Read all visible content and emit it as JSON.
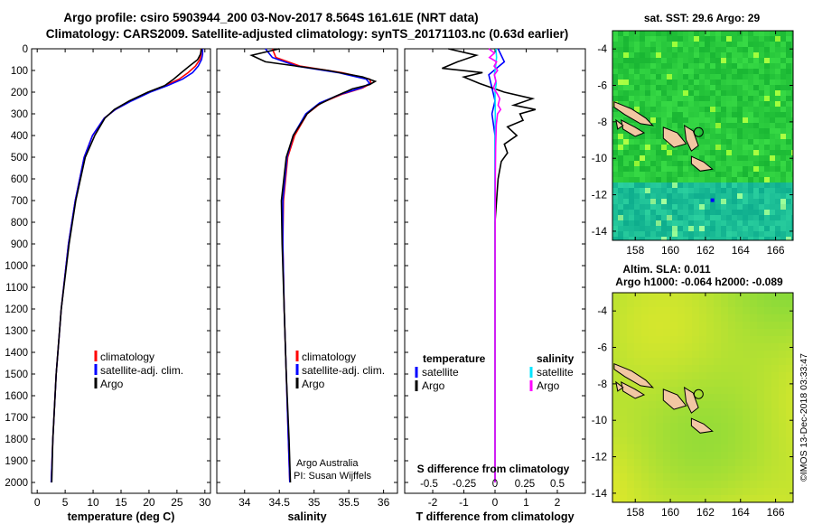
{
  "header": {
    "line1": "Argo profile: csiro 5903944_200 03-Nov-2017 8.564S 161.61E (NRT data)",
    "line2": "Climatology: CARS2009. Satellite-adjusted climatology: synTS_20171103.nc (0.63d earlier)"
  },
  "depth_axis": {
    "ticks": [
      0,
      100,
      200,
      300,
      400,
      500,
      600,
      700,
      800,
      900,
      1000,
      1100,
      1200,
      1300,
      1400,
      1500,
      1600,
      1700,
      1800,
      1900,
      2000
    ],
    "range": [
      0,
      2050
    ]
  },
  "colors": {
    "climatology": "#ff0000",
    "satellite": "#0000ff",
    "argo": "#000000",
    "sat_salinity": "#00e5ff",
    "argo_salinity": "#ff00ff"
  },
  "chart_data": [
    {
      "type": "line",
      "id": "temperature",
      "xlabel": "temperature (deg C)",
      "xlim": [
        -1,
        31
      ],
      "ylim": [
        0,
        2050
      ],
      "ylabel": "depth",
      "xticks": [
        0,
        5,
        10,
        15,
        20,
        25,
        30
      ],
      "legend": [
        "climatology",
        "satellite-adj. clim.",
        "Argo"
      ],
      "series": [
        {
          "name": "climatology",
          "color": "#ff0000",
          "depth": [
            0,
            25,
            50,
            80,
            110,
            140,
            170,
            200,
            240,
            280,
            320,
            400,
            500,
            700,
            900,
            1200,
            1500,
            1800,
            2000
          ],
          "values": [
            29.3,
            29.3,
            29.1,
            28.3,
            27.0,
            25.4,
            22.9,
            20.0,
            16.8,
            14.0,
            12.0,
            9.9,
            8.4,
            6.8,
            5.6,
            4.3,
            3.4,
            2.8,
            2.5
          ]
        },
        {
          "name": "satellite-adj. clim.",
          "color": "#0000ff",
          "depth": [
            0,
            25,
            50,
            80,
            110,
            140,
            170,
            200,
            240,
            280,
            320,
            400,
            500,
            700,
            900,
            1200,
            1500,
            1800,
            2000
          ],
          "values": [
            29.6,
            29.6,
            29.4,
            28.8,
            27.8,
            26.0,
            23.3,
            20.2,
            16.9,
            14.0,
            12.0,
            9.9,
            8.4,
            6.8,
            5.6,
            4.3,
            3.4,
            2.8,
            2.5
          ]
        },
        {
          "name": "Argo",
          "color": "#000000",
          "depth": [
            0,
            25,
            50,
            80,
            110,
            140,
            170,
            200,
            240,
            280,
            320,
            400,
            500,
            700,
            900,
            1200,
            1500,
            1800,
            2000
          ],
          "values": [
            29.4,
            29.2,
            28.7,
            27.2,
            25.8,
            24.4,
            22.8,
            19.8,
            16.5,
            13.8,
            12.1,
            10.3,
            8.6,
            6.9,
            5.7,
            4.3,
            3.4,
            2.8,
            2.6
          ]
        }
      ]
    },
    {
      "type": "line",
      "id": "salinity",
      "xlabel": "salinity",
      "xlim": [
        33.6,
        36.2
      ],
      "ylim": [
        0,
        2050
      ],
      "xticks": [
        34,
        34.5,
        35,
        35.5,
        36
      ],
      "legend": [
        "climatology",
        "satellite-adj. clim.",
        "Argo"
      ],
      "annotations": [
        "Argo Australia",
        "PI: Susan Wijffels"
      ],
      "series": [
        {
          "name": "climatology",
          "color": "#ff0000",
          "depth": [
            0,
            40,
            80,
            110,
            140,
            160,
            180,
            210,
            250,
            300,
            400,
            500,
            700,
            900,
            1200,
            1500,
            1800,
            2000
          ],
          "values": [
            34.4,
            34.45,
            34.8,
            35.4,
            35.8,
            35.82,
            35.7,
            35.4,
            35.1,
            34.9,
            34.72,
            34.62,
            34.56,
            34.55,
            34.57,
            34.6,
            34.63,
            34.65
          ]
        },
        {
          "name": "satellite-adj. clim.",
          "color": "#0000ff",
          "depth": [
            0,
            40,
            80,
            110,
            140,
            160,
            180,
            210,
            250,
            300,
            400,
            500,
            700,
            900,
            1200,
            1500,
            1800,
            2000
          ],
          "values": [
            34.3,
            34.4,
            34.75,
            35.35,
            35.75,
            35.8,
            35.68,
            35.38,
            35.08,
            34.88,
            34.7,
            34.61,
            34.55,
            34.55,
            34.57,
            34.6,
            34.63,
            34.65
          ]
        },
        {
          "name": "Argo",
          "color": "#000000",
          "depth": [
            0,
            30,
            60,
            100,
            130,
            150,
            165,
            185,
            220,
            260,
            300,
            400,
            500,
            700,
            900,
            1200,
            1500,
            1800,
            2000
          ],
          "values": [
            34.5,
            34.1,
            34.3,
            35.2,
            35.7,
            35.88,
            35.8,
            35.55,
            35.3,
            35.05,
            34.9,
            34.7,
            34.6,
            34.53,
            34.54,
            34.57,
            34.6,
            34.64,
            34.66
          ]
        }
      ]
    },
    {
      "type": "line",
      "id": "differences",
      "xlabel": "T difference from climatology",
      "xlim": [
        -2.9,
        2.9
      ],
      "ylim": [
        0,
        2050
      ],
      "xticks": [
        -2,
        -1,
        0,
        1,
        2
      ],
      "top_title": "S difference from climatology",
      "top_ticks": [
        "-0.5",
        "-0.25",
        "0",
        "0.25",
        "0.5"
      ],
      "legend_left_title": "temperature",
      "legend_right_title": "salinity",
      "legend_left": [
        "satellite",
        "Argo"
      ],
      "legend_right": [
        "satellite",
        "Argo"
      ],
      "series": [
        {
          "name": "T satellite",
          "color": "#0000ff",
          "depth": [
            0,
            60,
            120,
            180,
            240,
            300,
            400,
            600,
            1000,
            1500,
            2000
          ],
          "values": [
            0.1,
            0.3,
            -0.2,
            -0.1,
            0.0,
            -0.1,
            0.0,
            0.0,
            0.0,
            0.0,
            0.0
          ]
        },
        {
          "name": "T Argo",
          "color": "#000000",
          "depth": [
            0,
            30,
            60,
            90,
            110,
            130,
            160,
            200,
            230,
            260,
            280,
            300,
            330,
            360,
            400,
            440,
            480,
            520,
            600,
            800,
            1200,
            1600,
            2000
          ],
          "values": [
            -1.5,
            -0.6,
            -1.2,
            -1.7,
            -0.4,
            -1.0,
            -0.5,
            0.3,
            1.2,
            0.6,
            1.3,
            0.8,
            0.9,
            0.4,
            0.7,
            0.3,
            0.4,
            0.2,
            0.1,
            0.0,
            0.0,
            0.0,
            0.0
          ]
        },
        {
          "name": "S satellite",
          "color": "#00e5ff",
          "depth": [
            0,
            40,
            80,
            120,
            160,
            200,
            300,
            500,
            1000,
            1500,
            2000
          ],
          "values": [
            0.03,
            0.05,
            0.02,
            -0.02,
            0.04,
            0.0,
            0.01,
            0.0,
            0.0,
            0.0,
            0.0
          ]
        },
        {
          "name": "S Argo",
          "color": "#ff00ff",
          "depth": [
            0,
            20,
            40,
            60,
            80,
            100,
            120,
            150,
            180,
            210,
            230,
            260,
            280,
            300,
            350,
            450,
            600,
            1000,
            1500,
            2000
          ],
          "values": [
            -0.2,
            -0.02,
            -0.18,
            0.05,
            -0.03,
            0.08,
            -0.02,
            0.03,
            -0.05,
            0.08,
            0.15,
            0.1,
            0.18,
            0.08,
            0.04,
            0.02,
            0.01,
            0.0,
            0.0,
            0.0
          ]
        }
      ]
    },
    {
      "type": "heatmap",
      "id": "sst_map",
      "title": "sat. SST: 29.6 Argo: 29",
      "xticks": [
        "158",
        "160",
        "162",
        "164",
        "166"
      ],
      "yticks": [
        "-4",
        "-6",
        "-8",
        "-10",
        "-12",
        "-14"
      ],
      "lon_range": [
        156.7,
        167.0
      ],
      "lat_range": [
        -14.5,
        -3.0
      ],
      "float_lon": 161.61,
      "float_lat": -8.564
    },
    {
      "type": "heatmap",
      "id": "sla_map",
      "title": "Altim. SLA: 0.011",
      "subtitle": "Argo h1000: -0.064 h2000: -0.089",
      "xticks": [
        "158",
        "160",
        "162",
        "164",
        "166"
      ],
      "yticks": [
        "-4",
        "-6",
        "-8",
        "-10",
        "-12",
        "-14"
      ],
      "lon_range": [
        156.7,
        167.0
      ],
      "lat_range": [
        -14.5,
        -3.0
      ],
      "float_lon": 161.61,
      "float_lat": -8.564
    }
  ],
  "credit": "©IMOS 13-Dec-2018 03:33:47"
}
